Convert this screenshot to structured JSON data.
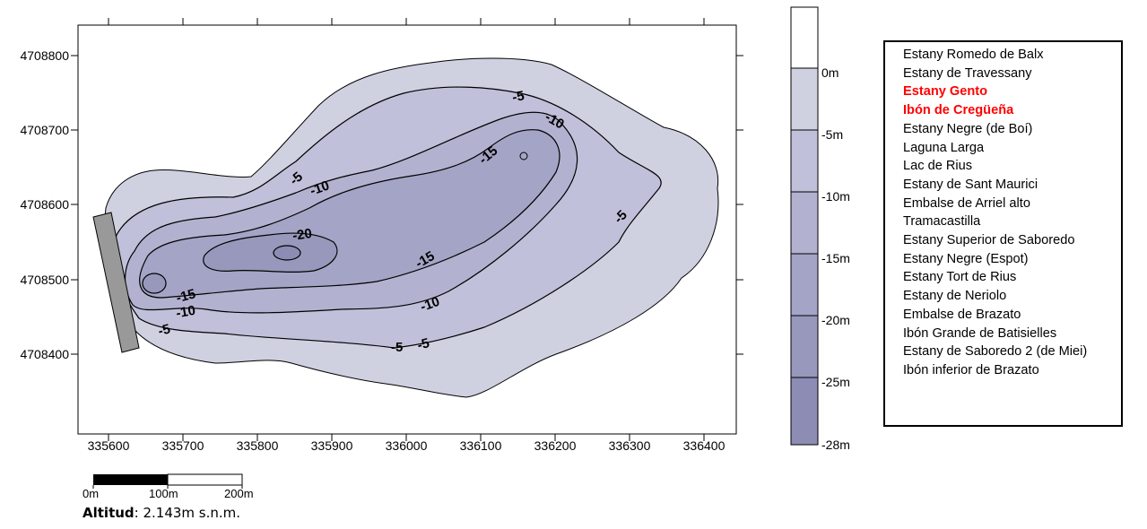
{
  "map": {
    "x_axis": {
      "ticks": [
        "335600",
        "335700",
        "335800",
        "335900",
        "336000",
        "336100",
        "336200",
        "336300",
        "336400"
      ]
    },
    "y_axis": {
      "ticks": [
        "4708800",
        "4708700",
        "4708600",
        "4708500",
        "4708400"
      ]
    },
    "contour_labels": [
      "-5",
      "-5",
      "-5",
      "-5",
      "-5",
      "-10",
      "-10",
      "-10",
      "-10",
      "-15",
      "-15",
      "-15",
      "-20"
    ]
  },
  "depth_scale": {
    "labels": [
      "0m",
      "-5m",
      "-10m",
      "-15m",
      "-20m",
      "-25m",
      "-28m"
    ],
    "colors": [
      "#ffffff",
      "#cfd0e0",
      "#c0c0da",
      "#b2b2d0",
      "#a4a4c6",
      "#9898bc",
      "#8c8cb4"
    ]
  },
  "scale_bar": {
    "labels": [
      "0m",
      "100m",
      "200m"
    ]
  },
  "legend": {
    "items": [
      {
        "label": "Estany Romedo de Balx",
        "highlight": false
      },
      {
        "label": "Estany de Travessany",
        "highlight": false
      },
      {
        "label": "Estany Gento",
        "highlight": true
      },
      {
        "label": "Ibón de Cregüeña",
        "highlight": true
      },
      {
        "label": "Estany Negre (de Boí)",
        "highlight": false
      },
      {
        "label": "Laguna Larga",
        "highlight": false
      },
      {
        "label": "Lac de Rius",
        "highlight": false
      },
      {
        "label": "Estany de Sant Maurici",
        "highlight": false
      },
      {
        "label": "Embalse de Arriel alto",
        "highlight": false
      },
      {
        "label": "Tramacastilla",
        "highlight": false
      },
      {
        "label": "Estany Superior de Saboredo",
        "highlight": false
      },
      {
        "label": "Estany Negre (Espot)",
        "highlight": false
      },
      {
        "label": "Estany Tort de Rius",
        "highlight": false
      },
      {
        "label": "Estany de Neriolo",
        "highlight": false
      },
      {
        "label": "Embalse de Brazato",
        "highlight": false
      },
      {
        "label": "Ibón Grande de Batisielles",
        "highlight": false
      },
      {
        "label": "Estany de Saboredo 2 (de Miei)",
        "highlight": false
      },
      {
        "label": "Ibón inferior de Brazato",
        "highlight": false
      }
    ]
  },
  "altitude": {
    "label": "Altitud",
    "value": "2.143m s.n.m."
  }
}
